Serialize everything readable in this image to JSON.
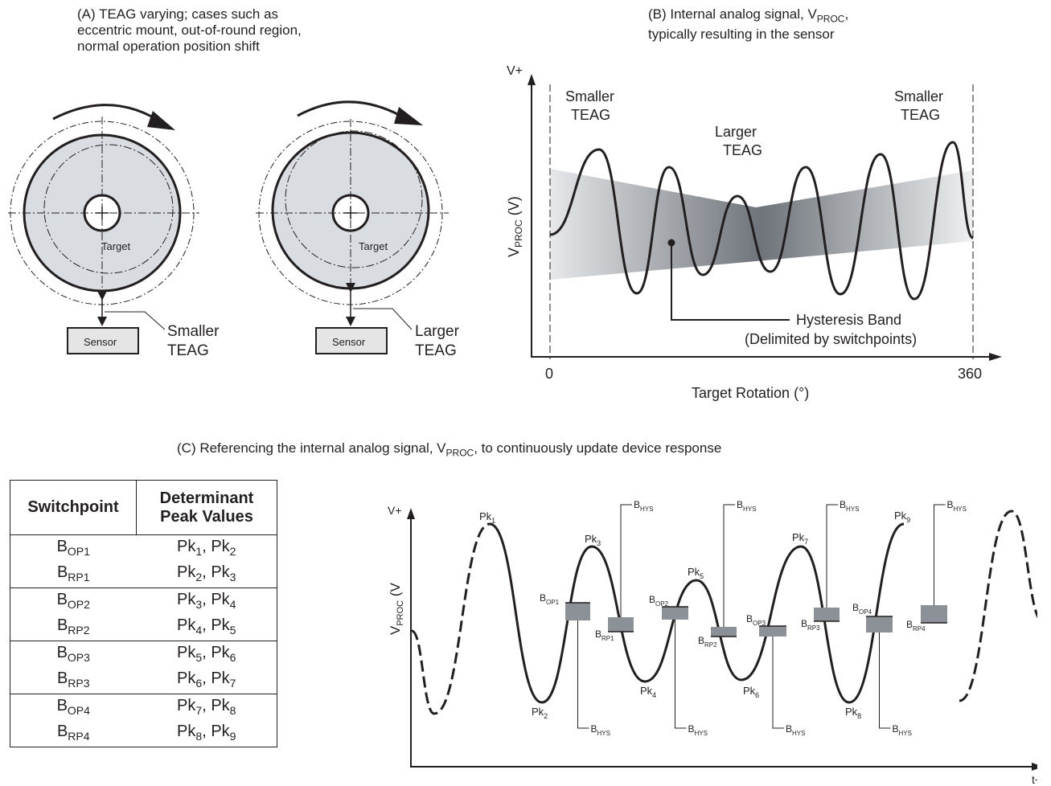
{
  "panel_a": {
    "caption_lines": [
      "(A) TEAG varying; cases such as",
      "eccentric mount, out-of-round region,",
      "normal operation position shift"
    ],
    "left_target_label": "Target",
    "right_target_label": "Target",
    "left_sensor_label": "Sensor",
    "right_sensor_label": "Sensor",
    "left_teag_lines": [
      "Smaller",
      "TEAG"
    ],
    "right_teag_lines": [
      "Larger",
      "TEAG"
    ]
  },
  "panel_b": {
    "caption_line1_pre": "(B) Internal analog signal, V",
    "caption_line1_sub": "PROC",
    "caption_line1_post": ",",
    "caption_line2": "typically resulting in the sensor",
    "y_top": "V+",
    "y_label_main": "V",
    "y_label_sub": "PROC",
    "y_label_post": " (V)",
    "x_start": "0",
    "x_end": "360",
    "x_label": "Target Rotation (°)",
    "left_region": [
      "Smaller",
      "TEAG"
    ],
    "mid_region": [
      "Larger",
      "TEAG"
    ],
    "right_region": [
      "Smaller",
      "TEAG"
    ],
    "hysteresis_lines": [
      "Hysteresis Band",
      "(Delimited by switchpoints)"
    ]
  },
  "panel_c": {
    "caption_pre": "(C) Referencing the internal analog signal, V",
    "caption_sub": "PROC",
    "caption_post": ", to continuously update device response",
    "y_top": "V+",
    "y_label_main": "V",
    "y_label_sub": "PROC",
    "y_label_post": " (V",
    "x_end": "t+",
    "bhys": {
      "main": "B",
      "sub": "HYS"
    },
    "peaks": [
      {
        "main": "Pk",
        "sub": "1"
      },
      {
        "main": "Pk",
        "sub": "2"
      },
      {
        "main": "Pk",
        "sub": "3"
      },
      {
        "main": "Pk",
        "sub": "4"
      },
      {
        "main": "Pk",
        "sub": "5"
      },
      {
        "main": "Pk",
        "sub": "6"
      },
      {
        "main": "Pk",
        "sub": "7"
      },
      {
        "main": "Pk",
        "sub": "8"
      },
      {
        "main": "Pk",
        "sub": "9"
      }
    ],
    "switchpoints": [
      {
        "main": "B",
        "sub": "OP1"
      },
      {
        "main": "B",
        "sub": "RP1"
      },
      {
        "main": "B",
        "sub": "OP2"
      },
      {
        "main": "B",
        "sub": "RP2"
      },
      {
        "main": "B",
        "sub": "OP3"
      },
      {
        "main": "B",
        "sub": "RP3"
      },
      {
        "main": "B",
        "sub": "OP4"
      },
      {
        "main": "B",
        "sub": "RP4"
      }
    ]
  },
  "table": {
    "headers": [
      "Switchpoint",
      "Determinant Peak Values"
    ],
    "header_lines_2": [
      "Determinant",
      "Peak Values"
    ],
    "rows": [
      {
        "sp": "B",
        "sp_sub": "OP1",
        "a": "Pk",
        "a_sub": "1",
        "b": "Pk",
        "b_sub": "2"
      },
      {
        "sp": "B",
        "sp_sub": "RP1",
        "a": "Pk",
        "a_sub": "2",
        "b": "Pk",
        "b_sub": "3"
      },
      {
        "sp": "B",
        "sp_sub": "OP2",
        "a": "Pk",
        "a_sub": "3",
        "b": "Pk",
        "b_sub": "4"
      },
      {
        "sp": "B",
        "sp_sub": "RP2",
        "a": "Pk",
        "a_sub": "4",
        "b": "Pk",
        "b_sub": "5"
      },
      {
        "sp": "B",
        "sp_sub": "OP3",
        "a": "Pk",
        "a_sub": "5",
        "b": "Pk",
        "b_sub": "6"
      },
      {
        "sp": "B",
        "sp_sub": "RP3",
        "a": "Pk",
        "a_sub": "6",
        "b": "Pk",
        "b_sub": "7"
      },
      {
        "sp": "B",
        "sp_sub": "OP4",
        "a": "Pk",
        "a_sub": "7",
        "b": "Pk",
        "b_sub": "8"
      },
      {
        "sp": "B",
        "sp_sub": "RP4",
        "a": "Pk",
        "a_sub": "8",
        "b": "Pk",
        "b_sub": "9"
      }
    ]
  },
  "colors": {
    "ink": "#231f20",
    "target_fill": "#d9dce1",
    "sensor_fill": "#e5e5e5",
    "band_gray": "#8c9197"
  }
}
